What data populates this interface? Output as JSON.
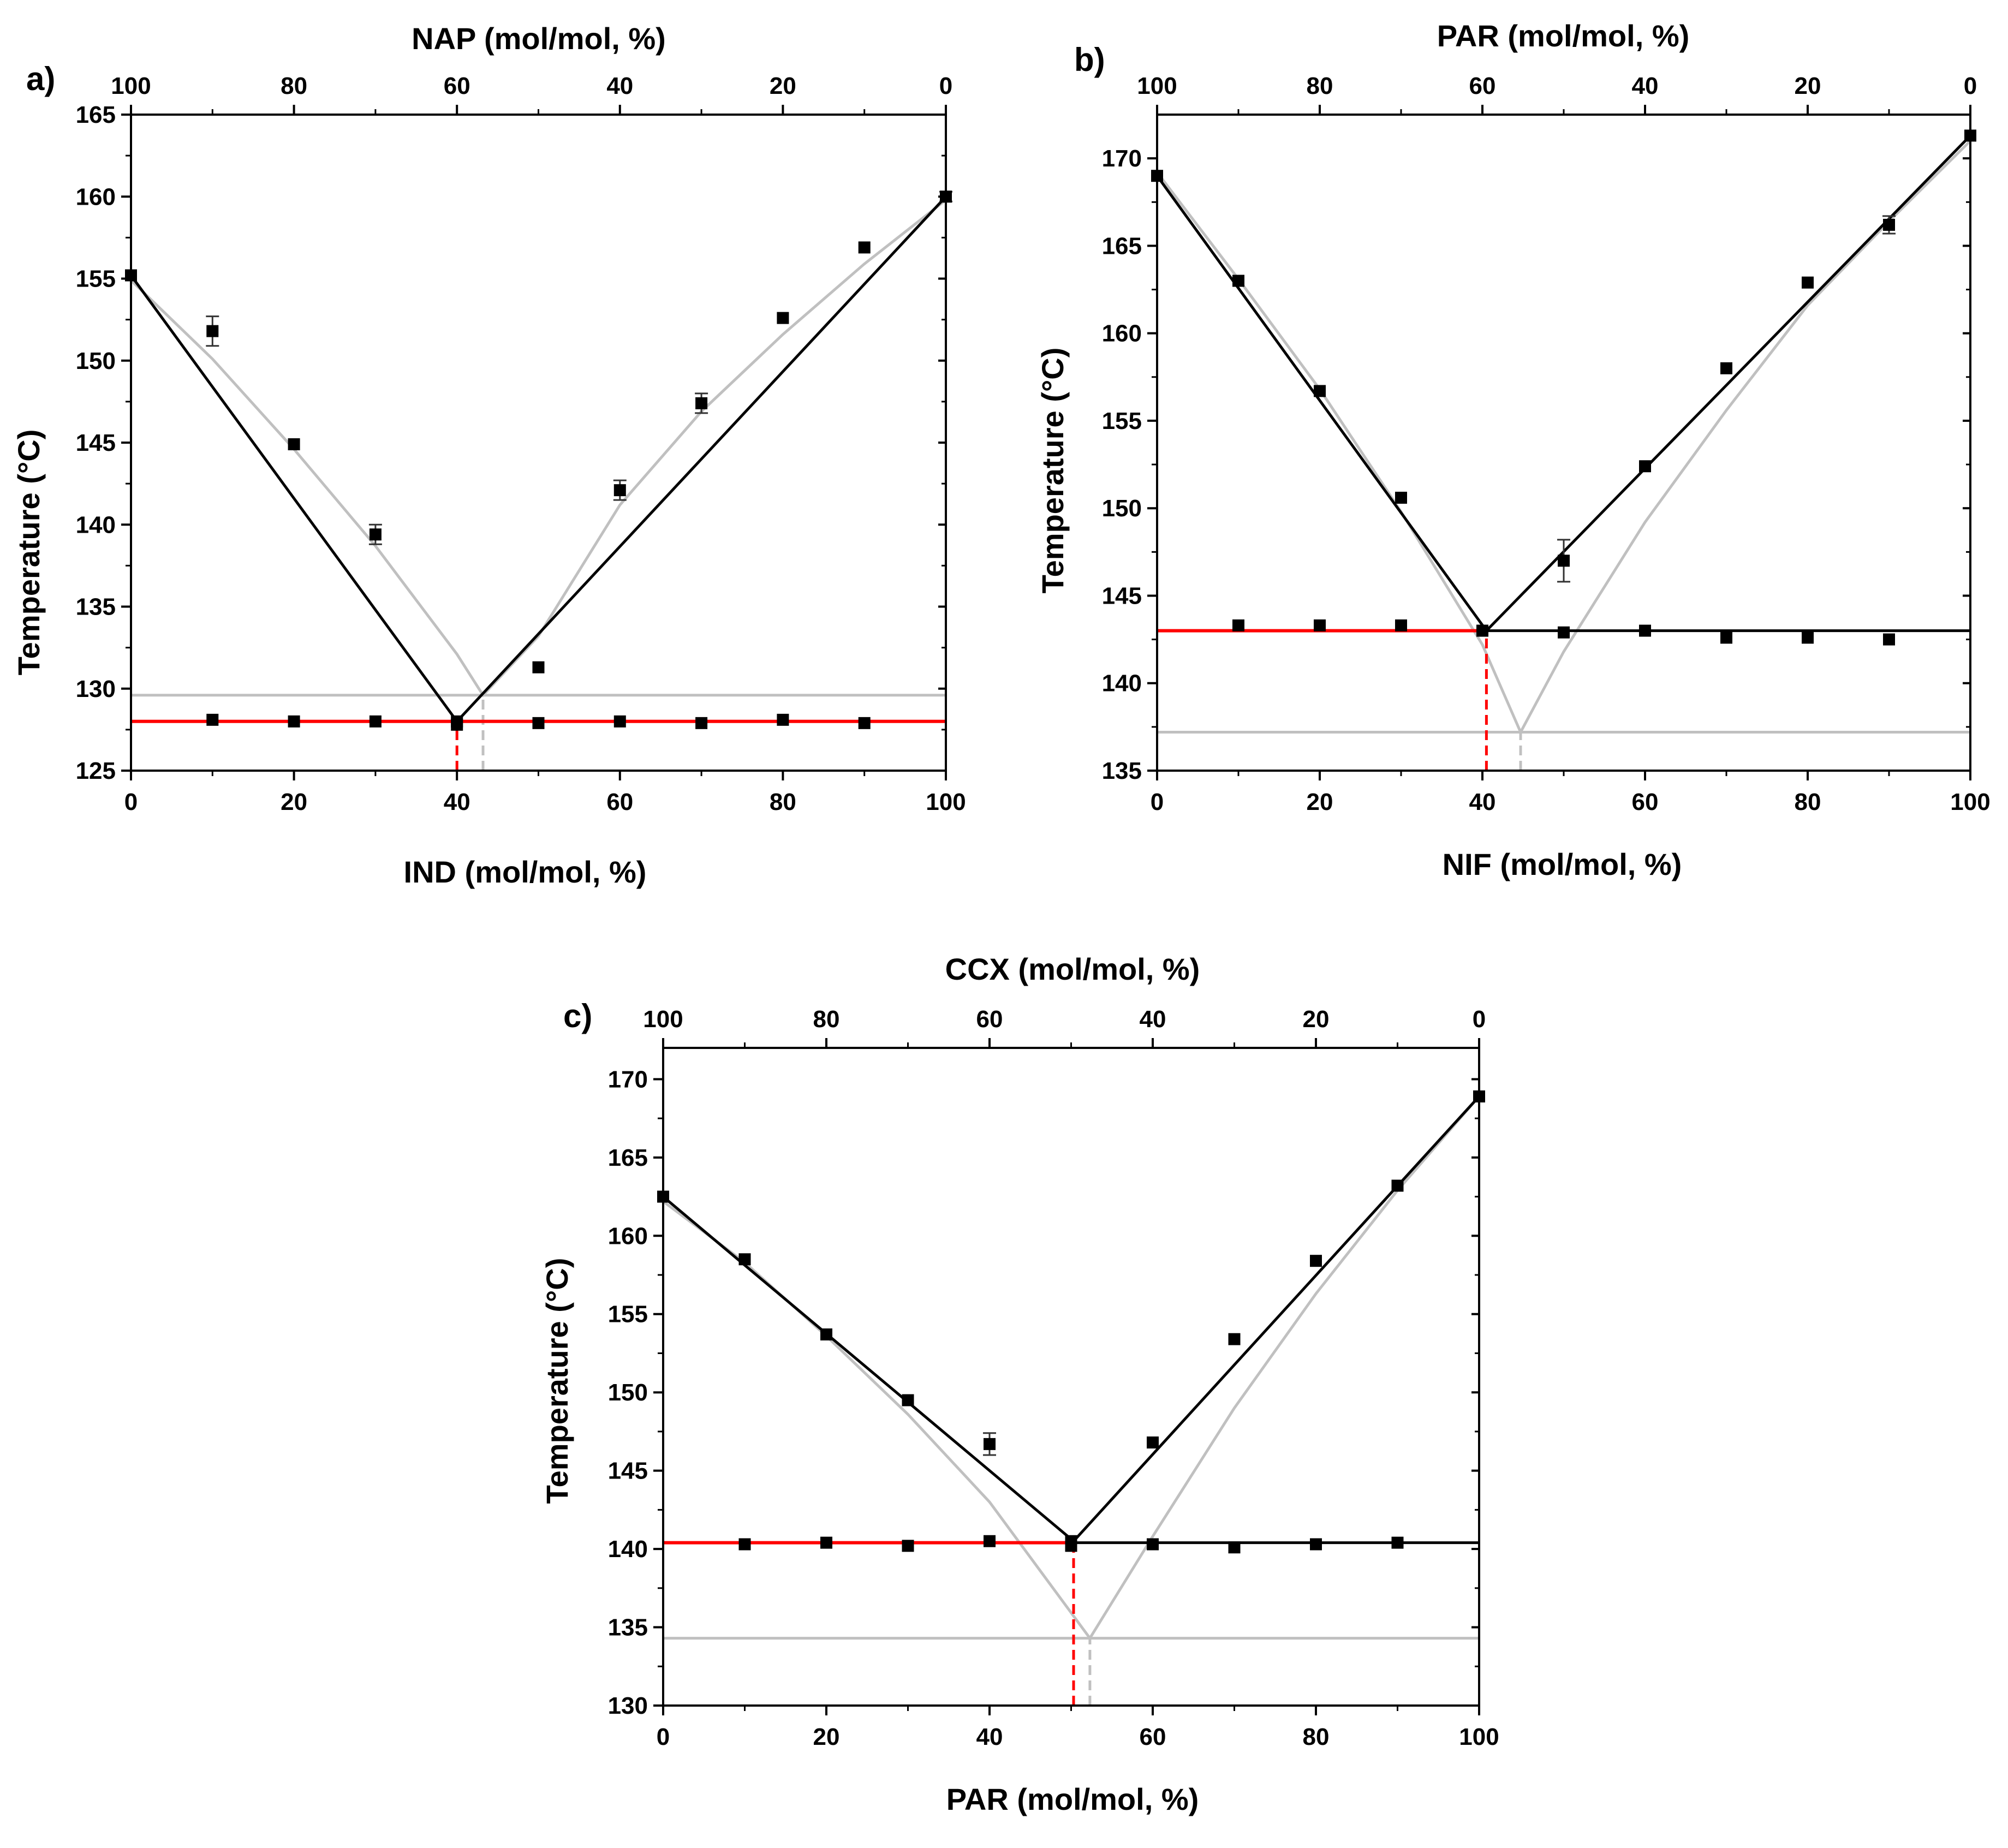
{
  "figure": {
    "colors": {
      "fit": "#000000",
      "ideal": "#c0c0c0",
      "eutectic": "#ff0000",
      "marker": "#000000",
      "frame": "#000000"
    }
  },
  "chart_data": [
    {
      "type": "scatter",
      "panel_label": "a)",
      "title": "",
      "xlabel": "IND (mol/mol, %)",
      "x2label": "NAP (mol/mol, %)",
      "ylabel": "Temperature (°C)",
      "xlim": [
        0,
        100
      ],
      "ylim": [
        125,
        165
      ],
      "xticks": [
        0,
        20,
        40,
        60,
        80,
        100
      ],
      "x2ticks": [
        100,
        80,
        60,
        40,
        20,
        0
      ],
      "yticks": [
        125,
        130,
        135,
        140,
        145,
        150,
        155,
        160,
        165
      ],
      "grid": false,
      "legend": "none",
      "series": [
        {
          "name": "liquidus (measured)",
          "points": [
            {
              "x": 0,
              "y": 155.2,
              "err": 0
            },
            {
              "x": 10,
              "y": 151.8,
              "err": 0.9
            },
            {
              "x": 20,
              "y": 144.9,
              "err": 0
            },
            {
              "x": 30,
              "y": 139.4,
              "err": 0.6
            },
            {
              "x": 40,
              "y": 128.0,
              "err": 0
            },
            {
              "x": 50,
              "y": 131.3,
              "err": 0
            },
            {
              "x": 60,
              "y": 142.1,
              "err": 0.6
            },
            {
              "x": 70,
              "y": 147.4,
              "err": 0.6
            },
            {
              "x": 80,
              "y": 152.6,
              "err": 0
            },
            {
              "x": 90,
              "y": 156.9,
              "err": 0
            },
            {
              "x": 100,
              "y": 160.0,
              "err": 0.3
            }
          ]
        },
        {
          "name": "solidus (measured)",
          "points": [
            {
              "x": 10,
              "y": 128.1
            },
            {
              "x": 20,
              "y": 128.0
            },
            {
              "x": 30,
              "y": 128.0
            },
            {
              "x": 40,
              "y": 127.8
            },
            {
              "x": 50,
              "y": 127.9
            },
            {
              "x": 60,
              "y": 128.0
            },
            {
              "x": 70,
              "y": 127.9
            },
            {
              "x": 80,
              "y": 128.1
            },
            {
              "x": 90,
              "y": 127.9
            }
          ]
        },
        {
          "name": "liquidus fit",
          "x": [
            0,
            40,
            100
          ],
          "y": [
            155.2,
            128.0,
            160.0
          ]
        },
        {
          "name": "ideal liquidus",
          "x": [
            0,
            10,
            20,
            30,
            40,
            43.2,
            50,
            60,
            70,
            80,
            90,
            100
          ],
          "y": [
            154.9,
            150.1,
            144.6,
            138.7,
            132.1,
            129.6,
            133.2,
            141.2,
            146.9,
            151.6,
            155.9,
            159.8
          ]
        },
        {
          "name": "eutectic line",
          "x": [
            0,
            100
          ],
          "y": [
            128.0,
            128.0
          ]
        },
        {
          "name": "ideal eutectic line",
          "x": [
            0,
            100
          ],
          "y": [
            129.6,
            129.6
          ]
        },
        {
          "name": "eutectic composition",
          "x": [
            40,
            40
          ],
          "y": [
            125,
            128.0
          ]
        },
        {
          "name": "ideal eutectic composition",
          "x": [
            43.2,
            43.2
          ],
          "y": [
            125,
            129.6
          ]
        }
      ]
    },
    {
      "type": "scatter",
      "panel_label": "b)",
      "title": "",
      "xlabel": "NIF (mol/mol, %)",
      "x2label": "PAR (mol/mol, %)",
      "ylabel": "Temperature (°C)",
      "xlim": [
        0,
        100
      ],
      "ylim": [
        135,
        172.5
      ],
      "xticks": [
        0,
        20,
        40,
        60,
        80,
        100
      ],
      "x2ticks": [
        100,
        80,
        60,
        40,
        20,
        0
      ],
      "yticks": [
        135,
        140,
        145,
        150,
        155,
        160,
        165,
        170
      ],
      "grid": false,
      "legend": "none",
      "series": [
        {
          "name": "liquidus (measured)",
          "points": [
            {
              "x": 0,
              "y": 169.0,
              "err": 0
            },
            {
              "x": 10,
              "y": 163.0,
              "err": 0
            },
            {
              "x": 20,
              "y": 156.7,
              "err": 0
            },
            {
              "x": 30,
              "y": 150.6,
              "err": 0
            },
            {
              "x": 40,
              "y": 143.0,
              "err": 0
            },
            {
              "x": 50,
              "y": 147.0,
              "err": 1.2
            },
            {
              "x": 60,
              "y": 152.4,
              "err": 0
            },
            {
              "x": 70,
              "y": 158.0,
              "err": 0
            },
            {
              "x": 80,
              "y": 162.9,
              "err": 0
            },
            {
              "x": 90,
              "y": 166.2,
              "err": 0.5
            },
            {
              "x": 100,
              "y": 171.3,
              "err": 0
            }
          ]
        },
        {
          "name": "solidus (measured)",
          "points": [
            {
              "x": 10,
              "y": 143.3
            },
            {
              "x": 20,
              "y": 143.3
            },
            {
              "x": 30,
              "y": 143.3
            },
            {
              "x": 40,
              "y": 143.0
            },
            {
              "x": 50,
              "y": 142.9
            },
            {
              "x": 60,
              "y": 143.0
            },
            {
              "x": 70,
              "y": 142.6
            },
            {
              "x": 80,
              "y": 142.6
            },
            {
              "x": 90,
              "y": 142.5
            }
          ]
        },
        {
          "name": "liquidus fit",
          "x": [
            0,
            40.5,
            100
          ],
          "y": [
            169.0,
            143.0,
            171.3
          ]
        },
        {
          "name": "ideal liquidus",
          "x": [
            0,
            10,
            20,
            30,
            40,
            44.7,
            50,
            60,
            70,
            80,
            90,
            100
          ],
          "y": [
            169.2,
            163.1,
            156.8,
            149.8,
            142.2,
            137.2,
            141.8,
            149.2,
            155.6,
            161.6,
            166.4,
            171.0
          ]
        },
        {
          "name": "eutectic line",
          "x": [
            0,
            40.5
          ],
          "y": [
            143.0,
            143.0
          ]
        },
        {
          "name": "solidus line",
          "x": [
            40.5,
            100
          ],
          "y": [
            143.0,
            143.0
          ]
        },
        {
          "name": "ideal eutectic line",
          "x": [
            0,
            100
          ],
          "y": [
            137.2,
            137.2
          ]
        },
        {
          "name": "eutectic composition",
          "x": [
            40.5,
            40.5
          ],
          "y": [
            135,
            143.0
          ]
        },
        {
          "name": "ideal eutectic composition",
          "x": [
            44.7,
            44.7
          ],
          "y": [
            135,
            137.2
          ]
        }
      ]
    },
    {
      "type": "scatter",
      "panel_label": "c)",
      "title": "",
      "xlabel": "PAR (mol/mol, %)",
      "x2label": "CCX (mol/mol, %)",
      "ylabel": "Temperature (°C)",
      "xlim": [
        0,
        100
      ],
      "ylim": [
        130,
        172
      ],
      "xticks": [
        0,
        20,
        40,
        60,
        80,
        100
      ],
      "x2ticks": [
        100,
        80,
        60,
        40,
        20,
        0
      ],
      "yticks": [
        130,
        135,
        140,
        145,
        150,
        155,
        160,
        165,
        170
      ],
      "grid": false,
      "legend": "none",
      "series": [
        {
          "name": "liquidus (measured)",
          "points": [
            {
              "x": 0,
              "y": 162.5,
              "err": 0
            },
            {
              "x": 10,
              "y": 158.5,
              "err": 0
            },
            {
              "x": 20,
              "y": 153.7,
              "err": 0
            },
            {
              "x": 30,
              "y": 149.5,
              "err": 0
            },
            {
              "x": 40,
              "y": 146.7,
              "err": 0.7
            },
            {
              "x": 50,
              "y": 140.5,
              "err": 0
            },
            {
              "x": 60,
              "y": 146.8,
              "err": 0
            },
            {
              "x": 70,
              "y": 153.4,
              "err": 0
            },
            {
              "x": 80,
              "y": 158.4,
              "err": 0
            },
            {
              "x": 90,
              "y": 163.2,
              "err": 0
            },
            {
              "x": 100,
              "y": 168.9,
              "err": 0
            }
          ]
        },
        {
          "name": "solidus (measured)",
          "points": [
            {
              "x": 10,
              "y": 140.3
            },
            {
              "x": 20,
              "y": 140.4
            },
            {
              "x": 30,
              "y": 140.2
            },
            {
              "x": 40,
              "y": 140.5
            },
            {
              "x": 50,
              "y": 140.2
            },
            {
              "x": 60,
              "y": 140.3
            },
            {
              "x": 70,
              "y": 140.1
            },
            {
              "x": 80,
              "y": 140.3
            },
            {
              "x": 90,
              "y": 140.4
            }
          ]
        },
        {
          "name": "liquidus fit",
          "x": [
            0,
            50.3,
            100
          ],
          "y": [
            162.5,
            140.5,
            168.9
          ]
        },
        {
          "name": "ideal liquidus",
          "x": [
            0,
            10,
            20,
            30,
            40,
            52.3,
            60,
            70,
            80,
            90,
            100
          ],
          "y": [
            162.2,
            158.3,
            153.6,
            148.6,
            143.0,
            134.3,
            140.8,
            149.0,
            156.3,
            162.9,
            168.9
          ]
        },
        {
          "name": "eutectic line",
          "x": [
            0,
            50.3
          ],
          "y": [
            140.4,
            140.4
          ]
        },
        {
          "name": "solidus line",
          "x": [
            50.3,
            100
          ],
          "y": [
            140.4,
            140.4
          ]
        },
        {
          "name": "ideal eutectic line",
          "x": [
            0,
            100
          ],
          "y": [
            134.3,
            134.3
          ]
        },
        {
          "name": "eutectic composition",
          "x": [
            50.3,
            50.3
          ],
          "y": [
            130,
            140.4
          ]
        },
        {
          "name": "ideal eutectic composition",
          "x": [
            52.3,
            52.3
          ],
          "y": [
            130,
            134.3
          ]
        }
      ]
    }
  ]
}
